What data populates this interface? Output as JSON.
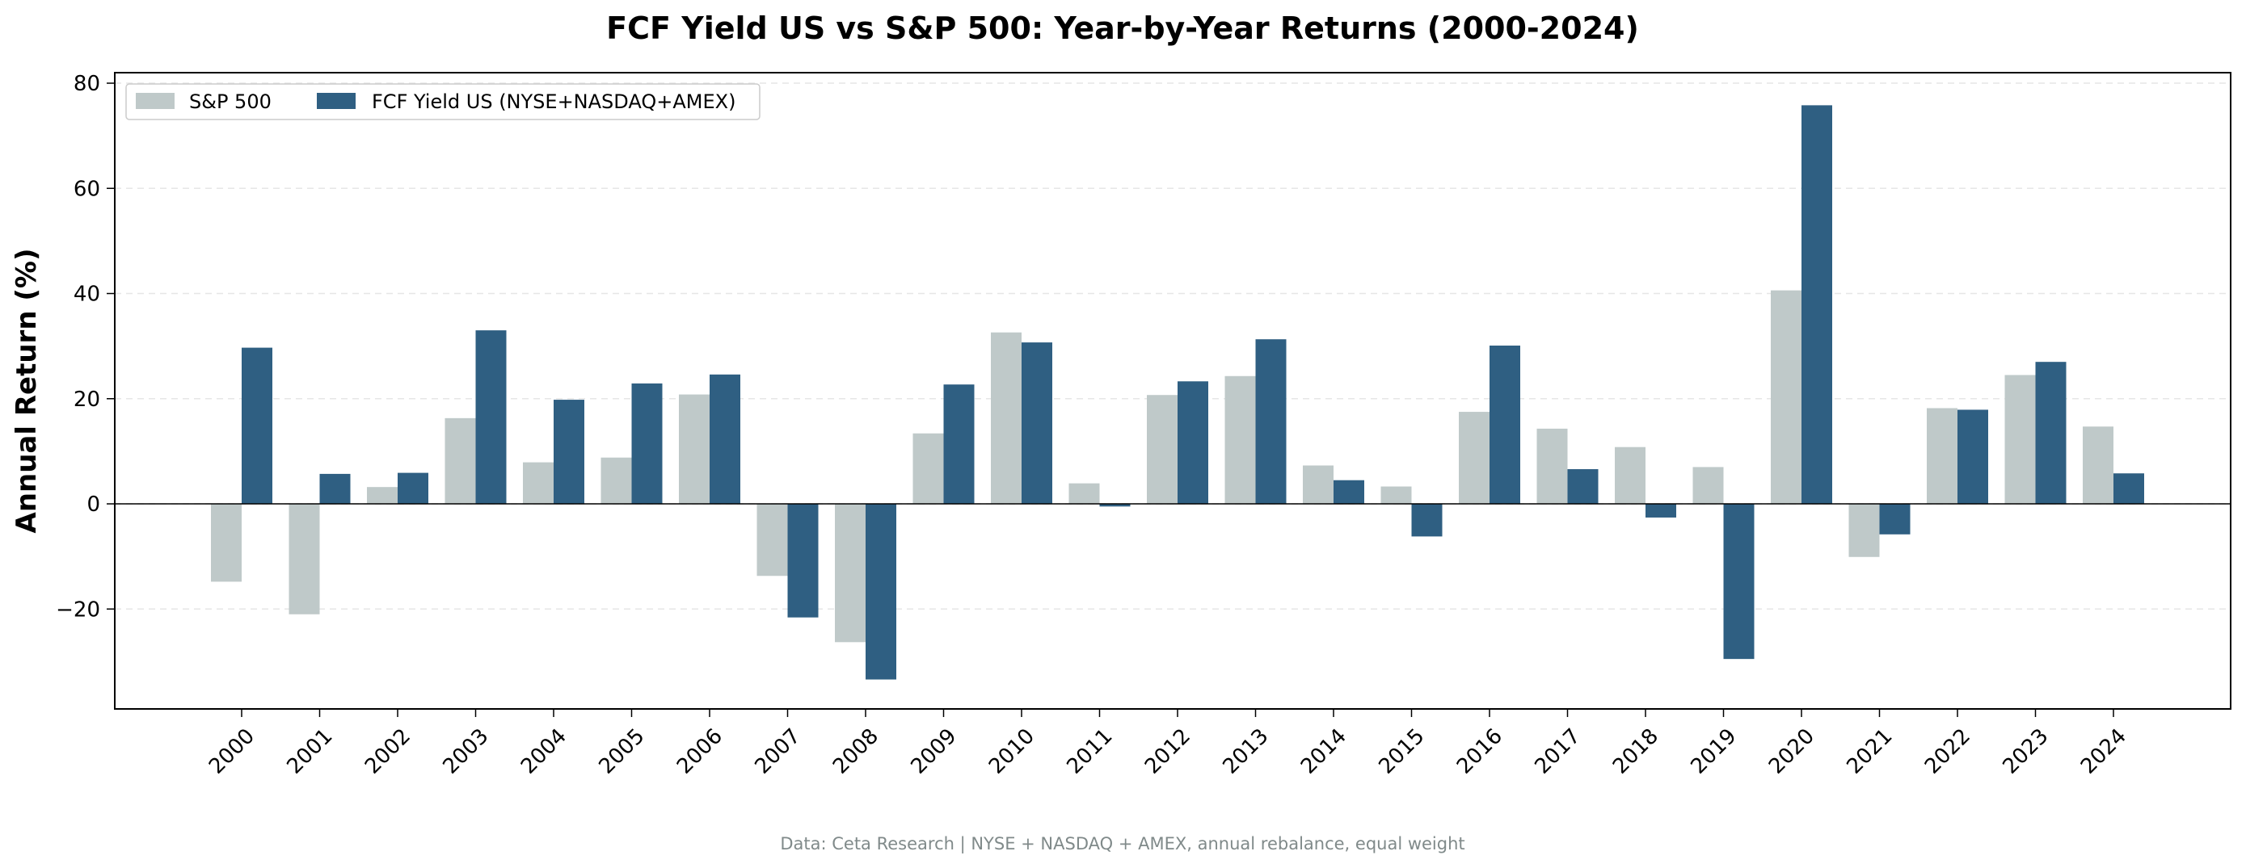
{
  "chart_data": {
    "type": "bar",
    "title": "FCF Yield US vs S&P 500: Year-by-Year Returns (2000-2024)",
    "xlabel": "",
    "ylabel": "Annual Return (%)",
    "ylim": [
      -39,
      82
    ],
    "yticks": [
      -20,
      0,
      20,
      40,
      60,
      80
    ],
    "ytick_labels": [
      "−20",
      "0",
      "20",
      "40",
      "60",
      "80"
    ],
    "grid": "horizontal dashed",
    "legend_position": "top-left",
    "categories": [
      "2000",
      "2001",
      "2002",
      "2003",
      "2004",
      "2005",
      "2006",
      "2007",
      "2008",
      "2009",
      "2010",
      "2011",
      "2012",
      "2013",
      "2014",
      "2015",
      "2016",
      "2017",
      "2018",
      "2019",
      "2020",
      "2021",
      "2022",
      "2023",
      "2024"
    ],
    "series": [
      {
        "name": "S&P 500",
        "color": "#bfc9c9",
        "values": [
          -14.8,
          -21.0,
          3.2,
          16.3,
          7.9,
          8.8,
          20.8,
          -13.7,
          -26.3,
          13.4,
          32.6,
          3.9,
          20.7,
          24.3,
          7.3,
          3.3,
          17.5,
          14.3,
          10.8,
          7.0,
          40.6,
          -10.1,
          18.2,
          24.5,
          14.7
        ]
      },
      {
        "name": "FCF Yield US (NYSE+NASDAQ+AMEX)",
        "color": "#2f5f82",
        "values": [
          29.7,
          5.7,
          5.9,
          33.0,
          19.8,
          22.9,
          24.6,
          -21.6,
          -33.4,
          22.7,
          30.7,
          -0.5,
          23.3,
          31.3,
          4.5,
          -6.2,
          30.1,
          6.6,
          -2.6,
          -29.5,
          75.8,
          -5.8,
          17.9,
          27.0,
          5.8
        ]
      }
    ],
    "footnote": "Data: Ceta Research | NYSE + NASDAQ + AMEX, annual rebalance, equal weight"
  }
}
